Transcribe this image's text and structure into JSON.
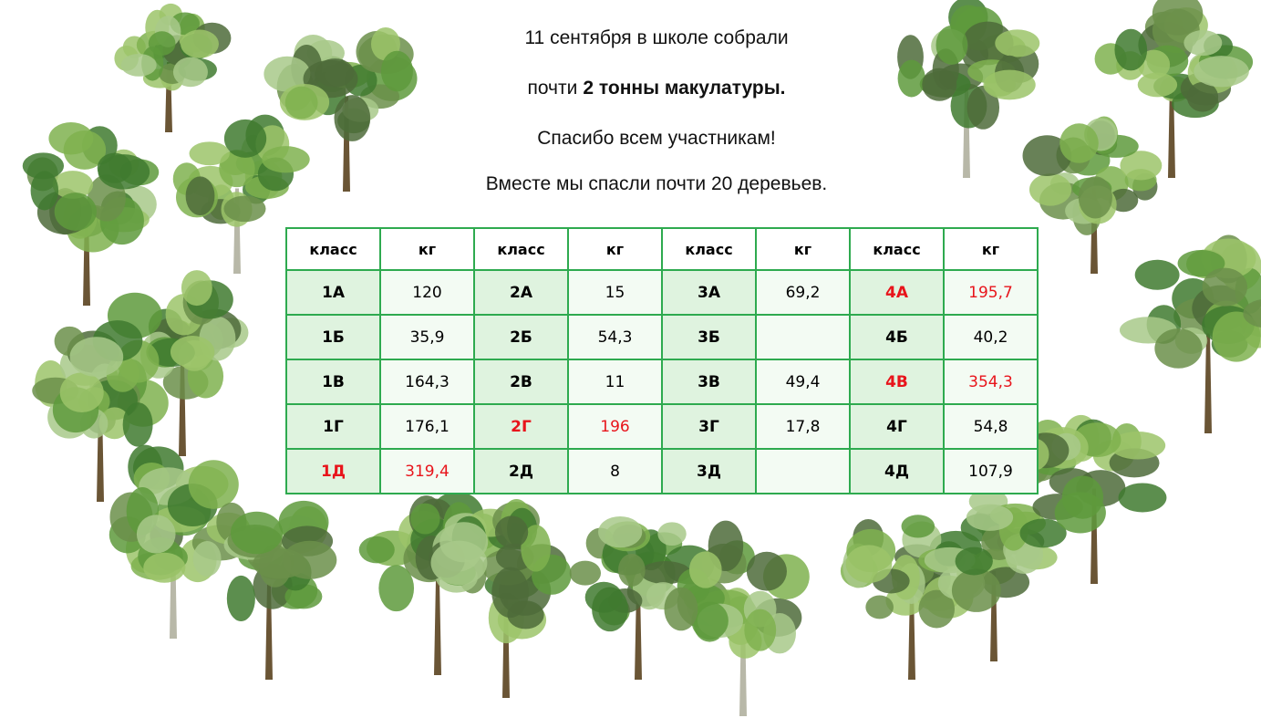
{
  "header": {
    "line1": "11 сентября в школе собрали",
    "line2_start": "почти",
    "line2_bold": "2 тонны макулатуры.",
    "line3": "Спасибо всем участникам!",
    "line4": "Вместе мы спасли почти 20 деревьев."
  },
  "table": {
    "highlight_color": "#e8141b",
    "header": [
      "класс",
      "кг",
      "класс",
      "кг",
      "класс",
      "кг",
      "класс",
      "кг"
    ],
    "rows": [
      [
        "1А",
        "120",
        "2А",
        "15",
        "3А",
        "69,2",
        {
          "text": "4А",
          "highlight": true
        },
        {
          "text": "195,7",
          "highlight": true
        }
      ],
      [
        "1Б",
        "35,9",
        "2Б",
        "54,3",
        "3Б",
        null,
        "4Б",
        "40,2"
      ],
      [
        "1В",
        "164,3",
        "2В",
        "11",
        "3В",
        "49,4",
        {
          "text": "4В",
          "highlight": true
        },
        {
          "text": "354,3",
          "highlight": true
        }
      ],
      [
        "1Г",
        "176,1",
        {
          "text": "2Г",
          "highlight": true
        },
        {
          "text": "196",
          "highlight": true
        },
        "3Г",
        "17,8",
        "4Г",
        "54,8"
      ],
      [
        {
          "text": "1Д",
          "highlight": true
        },
        {
          "text": "319,4",
          "highlight": true
        },
        "2Д",
        "8",
        "3Д",
        null,
        "4Д",
        "107,9"
      ]
    ]
  }
}
